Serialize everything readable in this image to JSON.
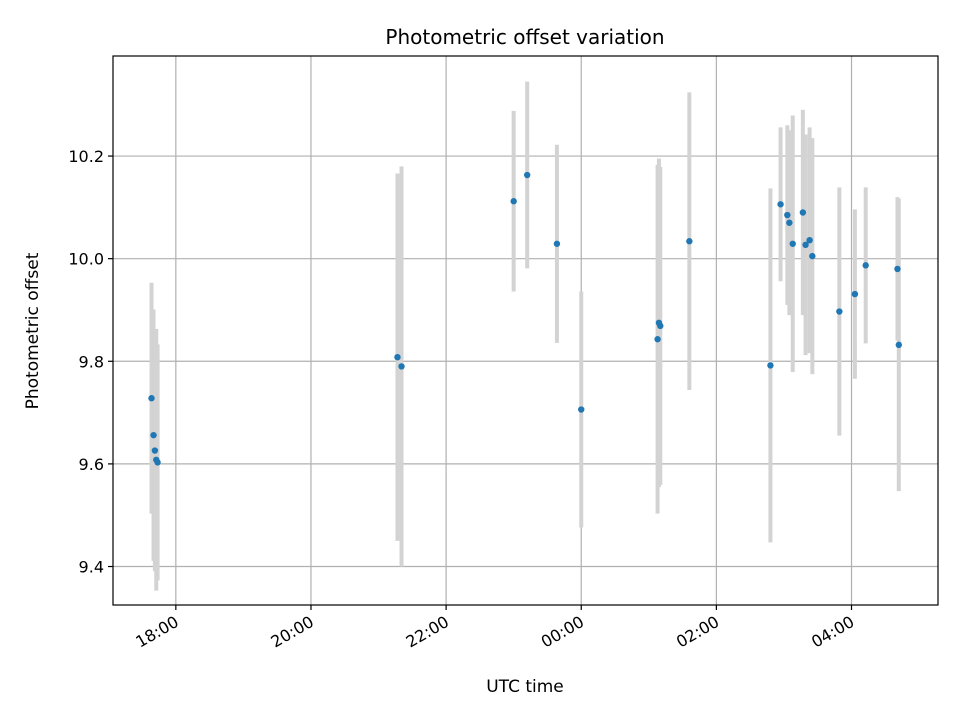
{
  "chart_data": {
    "type": "scatter",
    "title": "Photometric offset variation",
    "xlabel": "UTC time",
    "ylabel": "Photometric offset",
    "x_axis_kind": "time",
    "x_ticks": [
      "18:00",
      "20:00",
      "22:00",
      "00:00",
      "02:00",
      "04:00"
    ],
    "x_tick_hours": [
      18,
      20,
      22,
      24,
      26,
      28
    ],
    "xlim_hours": [
      17.07,
      29.28
    ],
    "y_ticks": [
      9.4,
      9.6,
      9.8,
      10.0,
      10.2
    ],
    "ylim": [
      9.325,
      10.395
    ],
    "grid": true,
    "point_color": "#1f77b4",
    "errorbar_color": "#d3d3d3",
    "points": [
      {
        "x": 17.64,
        "y": 9.728,
        "err": 0.225
      },
      {
        "x": 17.67,
        "y": 9.656,
        "err": 0.245
      },
      {
        "x": 17.69,
        "y": 9.626,
        "err": 0.235
      },
      {
        "x": 17.71,
        "y": 9.608,
        "err": 0.255
      },
      {
        "x": 17.73,
        "y": 9.603,
        "err": 0.23
      },
      {
        "x": 21.28,
        "y": 9.808,
        "err": 0.358
      },
      {
        "x": 21.34,
        "y": 9.79,
        "err": 0.39
      },
      {
        "x": 23.0,
        "y": 10.112,
        "err": 0.176
      },
      {
        "x": 23.2,
        "y": 10.163,
        "err": 0.182
      },
      {
        "x": 23.64,
        "y": 10.029,
        "err": 0.193
      },
      {
        "x": 24.0,
        "y": 9.706,
        "err": 0.23
      },
      {
        "x": 25.13,
        "y": 9.843,
        "err": 0.34
      },
      {
        "x": 25.15,
        "y": 9.875,
        "err": 0.32
      },
      {
        "x": 25.17,
        "y": 9.869,
        "err": 0.31
      },
      {
        "x": 25.6,
        "y": 10.034,
        "err": 0.29
      },
      {
        "x": 26.8,
        "y": 9.792,
        "err": 0.345
      },
      {
        "x": 26.95,
        "y": 10.106,
        "err": 0.15
      },
      {
        "x": 27.05,
        "y": 10.085,
        "err": 0.175
      },
      {
        "x": 27.08,
        "y": 10.07,
        "err": 0.18
      },
      {
        "x": 27.13,
        "y": 10.029,
        "err": 0.25
      },
      {
        "x": 27.28,
        "y": 10.09,
        "err": 0.2
      },
      {
        "x": 27.32,
        "y": 10.027,
        "err": 0.215
      },
      {
        "x": 27.38,
        "y": 10.036,
        "err": 0.22
      },
      {
        "x": 27.42,
        "y": 10.005,
        "err": 0.23
      },
      {
        "x": 27.82,
        "y": 9.897,
        "err": 0.242
      },
      {
        "x": 28.05,
        "y": 9.931,
        "err": 0.165
      },
      {
        "x": 28.21,
        "y": 9.987,
        "err": 0.152
      },
      {
        "x": 28.68,
        "y": 9.98,
        "err": 0.14
      },
      {
        "x": 28.7,
        "y": 9.832,
        "err": 0.285
      }
    ]
  }
}
